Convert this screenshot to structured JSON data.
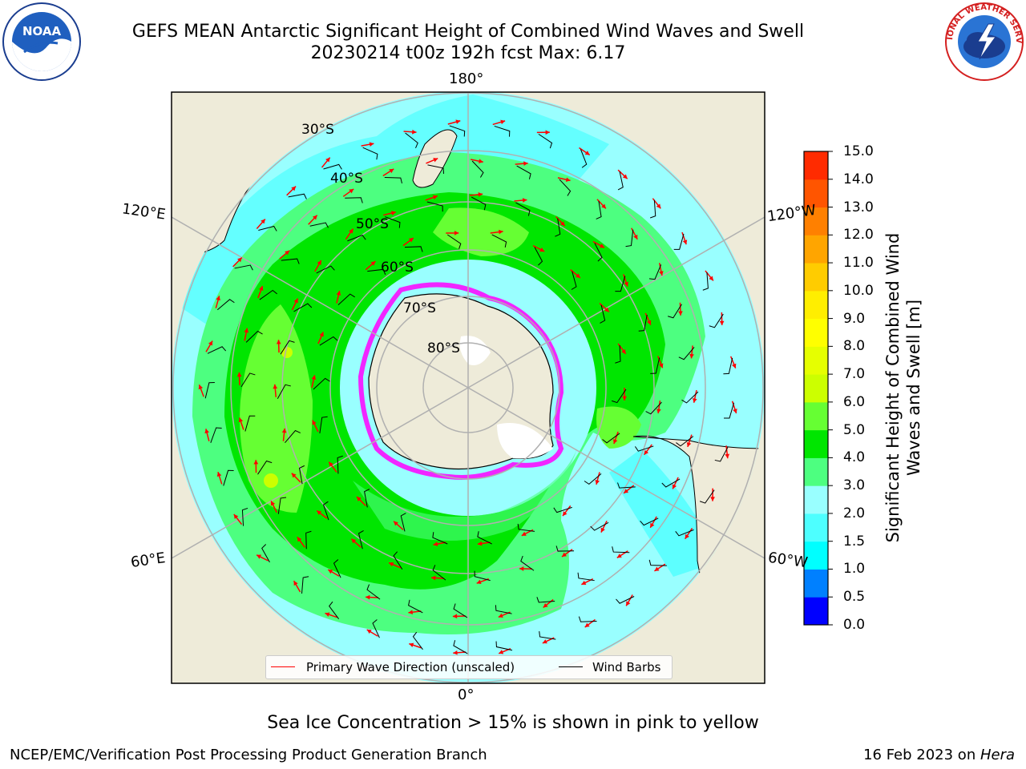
{
  "header": {
    "title_line1": "GEFS MEAN Antarctic Significant Height of Combined Wind Waves and Swell",
    "title_line2": "20230214 t00z 192h fcst   Max: 6.17"
  },
  "map": {
    "longitude_labels": {
      "top": "180°",
      "bottom": "0°",
      "upper_left": "120°E",
      "upper_right": "120°W",
      "lower_left": "60°E",
      "lower_right": "60°W"
    },
    "latitude_labels": [
      "30°S",
      "40°S",
      "50°S",
      "60°S",
      "70°S",
      "80°S"
    ],
    "colors": {
      "land": "#eeebd9",
      "coast": "#000000",
      "grid": "#b0b0b0",
      "ocean_low": "#99ffff",
      "wave_3_4": "#4dff80",
      "wave_4_5": "#00e600",
      "wave_5_6": "#66ff33",
      "sea_ice_edge": "#ff00ff",
      "wave_arrow": "#ff0000"
    }
  },
  "legend": {
    "wave_direction_label": "Primary Wave Direction (unscaled)",
    "wave_direction_color": "#ff0000",
    "wind_barbs_label": "Wind Barbs",
    "wind_barbs_color": "#000000"
  },
  "colorbar": {
    "label": "Significant Height of Combined Wind Waves and Swell [m]",
    "levels": [
      {
        "value": "0.0",
        "color": "#0000ff"
      },
      {
        "value": "0.5",
        "color": "#0080ff"
      },
      {
        "value": "1.0",
        "color": "#00ffff"
      },
      {
        "value": "1.5",
        "color": "#4dffff"
      },
      {
        "value": "2.0",
        "color": "#99ffff"
      },
      {
        "value": "3.0",
        "color": "#4dff80"
      },
      {
        "value": "4.0",
        "color": "#00e600"
      },
      {
        "value": "5.0",
        "color": "#66ff33"
      },
      {
        "value": "6.0",
        "color": "#ccff00"
      },
      {
        "value": "7.0",
        "color": "#e6ff00"
      },
      {
        "value": "8.0",
        "color": "#ffff00"
      },
      {
        "value": "9.0",
        "color": "#ffee00"
      },
      {
        "value": "10.0",
        "color": "#ffcc00"
      },
      {
        "value": "11.0",
        "color": "#ffa500"
      },
      {
        "value": "12.0",
        "color": "#ff8000"
      },
      {
        "value": "13.0",
        "color": "#ff5500"
      },
      {
        "value": "14.0",
        "color": "#ff2b00"
      },
      {
        "value": "15.0",
        "color": "#ff0000"
      }
    ]
  },
  "footer": {
    "sea_ice_note": "Sea Ice Concentration > 15% is shown in pink to yellow",
    "credit_left": "NCEP/EMC/Verification Post Processing Product Generation Branch",
    "credit_right_prefix": "16 Feb 2023 on ",
    "credit_right_machine": "Hera"
  },
  "logos": {
    "noaa_text": "NOAA",
    "nws_text": "NATIONAL WEATHER SERVICE"
  }
}
